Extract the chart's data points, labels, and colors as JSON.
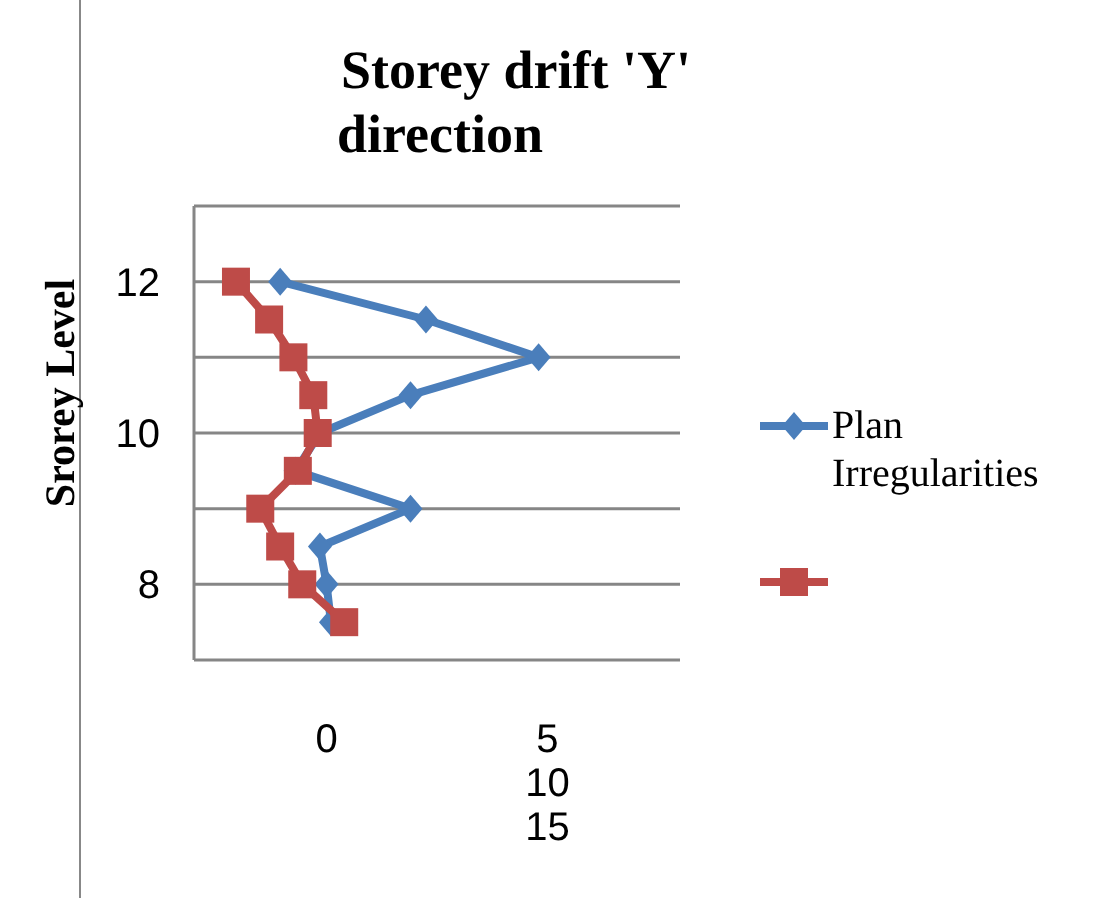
{
  "chart_data": {
    "type": "line",
    "title": "Storey drift 'Y' direction",
    "ylabel": "Srorey Level",
    "xlim": [
      -3,
      8
    ],
    "xticks": [
      0,
      5
    ],
    "annotations": [
      "10",
      "15"
    ],
    "ylim": [
      7,
      13
    ],
    "yticks": [
      8,
      {
        "value": 9,
        "label": null
      },
      10,
      {
        "value": 11,
        "label": null
      },
      12,
      {
        "value": 13,
        "label": null
      }
    ],
    "grid": "y",
    "legend": "right",
    "line_style": "solid",
    "series": [
      {
        "name": "Plan Irregularities",
        "color": "#4a7ebb",
        "marker": "diamond",
        "x": [
          -1.05,
          2.25,
          4.8,
          1.9,
          -0.15,
          -0.7,
          1.9,
          -0.15,
          0,
          0.1
        ],
        "values": [
          12,
          11.5,
          11,
          10.5,
          10,
          9.5,
          9,
          8.5,
          8,
          7.5
        ]
      },
      {
        "color": "#be4b48",
        "marker": "square",
        "x": [
          -2.05,
          -1.3,
          -0.75,
          -0.3,
          -0.2,
          -0.65,
          -1.5,
          -1.05,
          -0.55,
          0.4
        ],
        "values": [
          12,
          11.5,
          11,
          10.5,
          10,
          9.5,
          9,
          8.5,
          8,
          7.5
        ]
      }
    ]
  }
}
